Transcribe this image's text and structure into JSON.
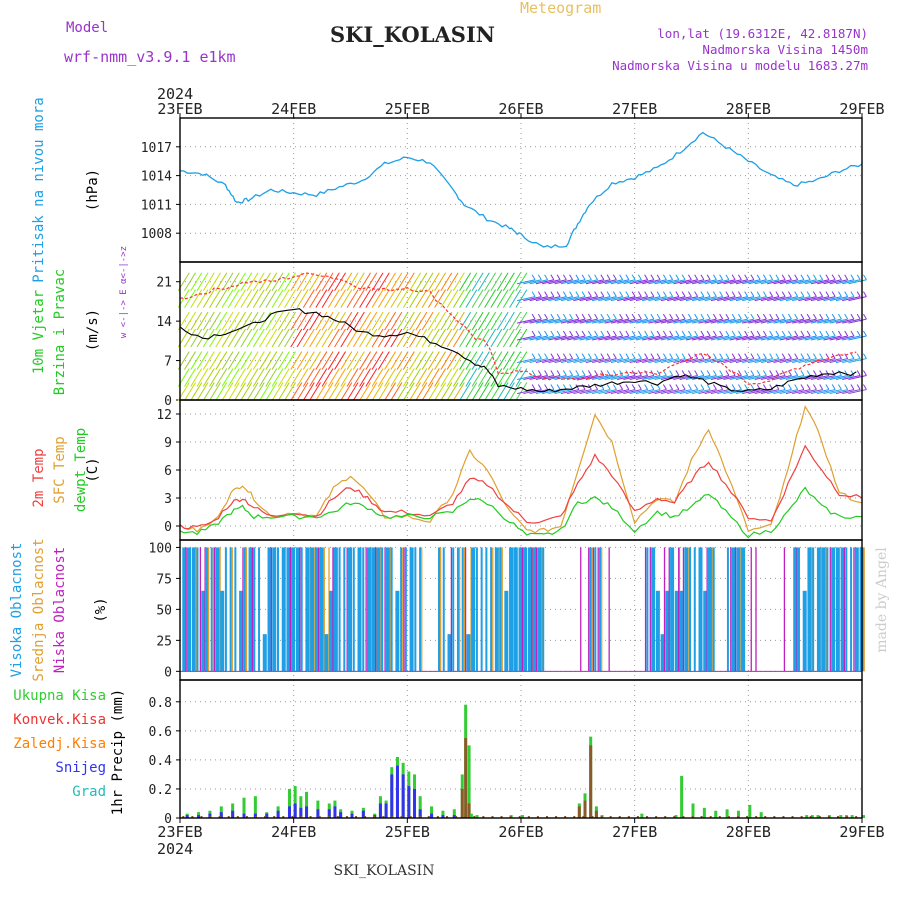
{
  "header": {
    "meteogram": "Meteogram",
    "model_label": "Model",
    "model_name": "wrf-nmm_v3.9.1 e1km",
    "station": "SKI_KOLASIN",
    "lonlat": "lon,lat (19.6312E, 42.8187N)",
    "elevation": "Nadmorska Visina 1450m",
    "model_elevation": "Nadmorska Visina u modelu 1683.27m",
    "footer_station": "SKI_KOLASIN",
    "credit": "made by Angel",
    "wind_compass": "w <-|-> E  α<-|->z"
  },
  "time_axis": {
    "year": "2024",
    "ticks": [
      "23FEB",
      "24FEB",
      "25FEB",
      "26FEB",
      "27FEB",
      "28FEB",
      "29FEB"
    ]
  },
  "colors": {
    "pressure": "#1ea0e6",
    "wind_speed": "#000000",
    "wind_gust": "#ff3030",
    "temp_2m": "#f04040",
    "temp_sfc": "#e0a030",
    "dewpoint": "#22cc22",
    "cloud_high": "#1ea0e6",
    "cloud_mid": "#e0a030",
    "cloud_low": "#c020c0",
    "precip_total": "#33cc33",
    "precip_conv": "#ee3333",
    "precip_frz": "#ff8000",
    "snow": "#3333ee",
    "hail": "#22bbbb",
    "title_purple": "#9933cc",
    "title_gold": "#e8c060"
  },
  "chart_data": [
    {
      "type": "line",
      "panel": "pressure",
      "ylabel_left": "Pritisak na nivou mora",
      "ylabel_unit": "(hPa)",
      "ylim": [
        1005,
        1020
      ],
      "yticks": [
        1008,
        1011,
        1014,
        1017
      ],
      "x_days": [
        0,
        0.2,
        0.4,
        0.5,
        0.6,
        0.8,
        1.0,
        1.2,
        1.4,
        1.6,
        1.8,
        2.0,
        2.2,
        2.4,
        2.5,
        2.7,
        2.9,
        3.0,
        3.2,
        3.4,
        3.5,
        3.6,
        3.8,
        4.0,
        4.2,
        4.4,
        4.6,
        4.8,
        5.0,
        5.2,
        5.4,
        5.6,
        5.8,
        6.0
      ],
      "series": [
        {
          "name": "",
          "values": [
            1014.5,
            1014.2,
            1013,
            1011.2,
            1011.5,
            1012.5,
            1012.2,
            1012,
            1012.8,
            1013.5,
            1015.2,
            1015.9,
            1015.4,
            1012.5,
            1011,
            1009.5,
            1008.5,
            1007.8,
            1006.5,
            1006.8,
            1009,
            1011,
            1013.2,
            1013.8,
            1014.8,
            1016.5,
            1018.5,
            1017,
            1015.5,
            1014,
            1013,
            1013.5,
            1014.5,
            1015.2
          ]
        }
      ]
    },
    {
      "type": "line",
      "panel": "wind",
      "ylabel_left": "10m Vjetar Brzina i Pravac",
      "ylabel_unit": "(m/s)",
      "ylim": [
        0,
        24.5
      ],
      "yticks": [
        0,
        7,
        14,
        21
      ],
      "x_days": [
        0,
        0.2,
        0.4,
        0.6,
        0.8,
        1.0,
        1.2,
        1.4,
        1.6,
        1.8,
        2.0,
        2.2,
        2.4,
        2.6,
        2.7,
        2.8,
        3.0,
        3.2,
        3.4,
        3.6,
        3.8,
        4.0,
        4.2,
        4.4,
        4.6,
        4.8,
        5.0,
        5.2,
        5.4,
        5.6,
        5.8,
        6.0
      ],
      "series": [
        {
          "name": "",
          "values": [
            13,
            11,
            12,
            13,
            15,
            16,
            15.5,
            14,
            12,
            11.5,
            12,
            10.5,
            9,
            6.5,
            5.5,
            2.5,
            2,
            1.5,
            2,
            2.5,
            3,
            3.5,
            3,
            4.5,
            3.5,
            2,
            1.5,
            2,
            3.5,
            4.5,
            5,
            4.5
          ]
        },
        {
          "name": "",
          "values": [
            18,
            19,
            20,
            21,
            21,
            22,
            22.5,
            21.5,
            20,
            19.5,
            20,
            19,
            15,
            11,
            10,
            5,
            5,
            4,
            3.5,
            4,
            4.5,
            5,
            4.5,
            7,
            8,
            6,
            3,
            3.5,
            5.5,
            7,
            8,
            8.5
          ]
        }
      ]
    },
    {
      "type": "line",
      "panel": "temperature",
      "ylabel_left": [
        "2m Temp",
        "SFC Temp",
        "dewpt Temp"
      ],
      "ylabel_unit": "(C)",
      "ylim": [
        -1.5,
        13.5
      ],
      "yticks": [
        0,
        3,
        6,
        9,
        12
      ],
      "x_days": [
        0,
        0.15,
        0.3,
        0.45,
        0.55,
        0.65,
        0.8,
        1.0,
        1.2,
        1.35,
        1.5,
        1.65,
        1.8,
        2.0,
        2.2,
        2.4,
        2.55,
        2.7,
        2.9,
        3.05,
        3.2,
        3.35,
        3.5,
        3.65,
        3.8,
        4.0,
        4.2,
        4.35,
        4.5,
        4.65,
        4.8,
        5.0,
        5.2,
        5.35,
        5.5,
        5.65,
        5.8,
        6.0
      ],
      "series": [
        {
          "name": "2m Temp",
          "values": [
            0,
            -0.2,
            0.5,
            2.5,
            3,
            2,
            1,
            1.5,
            1,
            3,
            4.2,
            3,
            1.5,
            1.5,
            1,
            2.5,
            5,
            4.5,
            2,
            0.5,
            0.5,
            1,
            4.5,
            7.5,
            5.5,
            1.5,
            3,
            2.5,
            5,
            7,
            4.5,
            1,
            0.5,
            4.5,
            8.5,
            6,
            3.5,
            3
          ]
        },
        {
          "name": "SFC Temp",
          "values": [
            0,
            -0.5,
            0.5,
            3.5,
            4.5,
            3,
            1,
            1.5,
            1,
            4,
            5.5,
            3.5,
            1,
            1,
            0.5,
            3.5,
            8,
            6,
            1.5,
            -0.5,
            -0.5,
            0,
            6,
            12,
            9,
            0.5,
            3,
            2.5,
            7,
            10.5,
            6,
            -0.5,
            0,
            6,
            13,
            9,
            3.5,
            2.5
          ]
        },
        {
          "name": "dewpt Temp",
          "values": [
            -0.5,
            -0.8,
            0,
            1.5,
            2,
            1,
            1,
            1,
            1,
            1.5,
            2.5,
            2,
            1,
            1,
            1,
            1.5,
            3,
            2.5,
            0.5,
            -1,
            -1,
            -0.5,
            2.5,
            3,
            2,
            -0.5,
            1.5,
            1,
            2,
            3.5,
            1.5,
            -1,
            -0.5,
            1.5,
            4,
            2,
            1,
            1
          ]
        }
      ]
    },
    {
      "type": "bar",
      "panel": "clouds",
      "ylabel_left": [
        "Visoka Oblacnost",
        "Srednja Oblacnost",
        "Niska Oblacnost"
      ],
      "ylabel_unit": "(%)",
      "ylim": [
        0,
        100
      ],
      "yticks": [
        0,
        25,
        50,
        75,
        100
      ],
      "series": [
        {
          "name": "Visoka Oblacnost",
          "values_note": "",
          "values": []
        },
        {
          "name": "Srednja Oblacnost",
          "values": []
        },
        {
          "name": "Niska Oblacnost",
          "values": []
        }
      ]
    },
    {
      "type": "bar",
      "panel": "precip",
      "ylabel_unit": "1hr Precip (mm)",
      "legend": [
        "Ukupna Kisa",
        "Konvek.Kisa",
        "Zaledj.Kisa",
        "Snijeg",
        "Grad"
      ],
      "ylim": [
        0,
        0.95
      ],
      "yticks": [
        0,
        0.2,
        0.4,
        0.6,
        0.8
      ],
      "x_days": [
        0.05,
        0.15,
        0.25,
        0.35,
        0.45,
        0.55,
        0.65,
        0.75,
        0.85,
        0.95,
        1.0,
        1.05,
        1.1,
        1.2,
        1.3,
        1.35,
        1.4,
        1.5,
        1.6,
        1.7,
        1.75,
        1.8,
        1.85,
        1.9,
        1.95,
        2.0,
        2.05,
        2.1,
        2.2,
        2.3,
        2.4,
        2.47,
        2.5,
        2.53,
        2.55,
        2.6,
        2.9,
        3.0,
        3.5,
        3.55,
        3.6,
        3.65,
        3.7,
        4.05,
        4.35,
        4.4,
        4.5,
        4.6,
        4.7,
        4.8,
        4.9,
        5.0,
        5.1,
        5.5,
        5.55,
        5.6,
        5.7,
        5.8,
        5.85,
        5.9,
        6.0
      ],
      "series": [
        {
          "name": "Ukupna Kisa",
          "values": [
            0.03,
            0.04,
            0.05,
            0.08,
            0.1,
            0.14,
            0.15,
            0.04,
            0.08,
            0.2,
            0.22,
            0.15,
            0.18,
            0.12,
            0.1,
            0.12,
            0.06,
            0.05,
            0.07,
            0.03,
            0.15,
            0.12,
            0.35,
            0.42,
            0.38,
            0.32,
            0.3,
            0.15,
            0.08,
            0.05,
            0.06,
            0.3,
            0.78,
            0.5,
            0.03,
            0.02,
            0.02,
            0.02,
            0.1,
            0.17,
            0.56,
            0.08,
            0.02,
            0.03,
            0.02,
            0.29,
            0.1,
            0.07,
            0.05,
            0.06,
            0.05,
            0.09,
            0.04,
            0.02,
            0.02,
            0.02,
            0.02,
            0.02,
            0.02,
            0.02,
            0.02
          ]
        },
        {
          "name": "Konvek.Kisa",
          "values": [
            0,
            0,
            0,
            0,
            0,
            0,
            0,
            0,
            0,
            0,
            0,
            0,
            0,
            0,
            0,
            0,
            0,
            0,
            0,
            0,
            0,
            0,
            0,
            0,
            0,
            0,
            0,
            0,
            0,
            0,
            0,
            0.2,
            0.55,
            0.1,
            0,
            0,
            0,
            0,
            0.08,
            0.12,
            0.5,
            0.05,
            0,
            0,
            0,
            0,
            0,
            0,
            0,
            0,
            0,
            0,
            0,
            0,
            0,
            0,
            0,
            0,
            0,
            0,
            0
          ]
        },
        {
          "name": "Snijeg",
          "values": [
            0.02,
            0.02,
            0.03,
            0.04,
            0.05,
            0.03,
            0.03,
            0.03,
            0.05,
            0.08,
            0.1,
            0.07,
            0.08,
            0.06,
            0.06,
            0.08,
            0.04,
            0.03,
            0.05,
            0.02,
            0.1,
            0.1,
            0.3,
            0.36,
            0.3,
            0.22,
            0.2,
            0.06,
            0.03,
            0.02,
            0.02,
            0,
            0,
            0,
            0,
            0,
            0,
            0,
            0,
            0,
            0,
            0,
            0,
            0,
            0,
            0,
            0,
            0,
            0,
            0,
            0,
            0,
            0,
            0,
            0,
            0,
            0,
            0,
            0,
            0,
            0
          ]
        }
      ]
    }
  ]
}
